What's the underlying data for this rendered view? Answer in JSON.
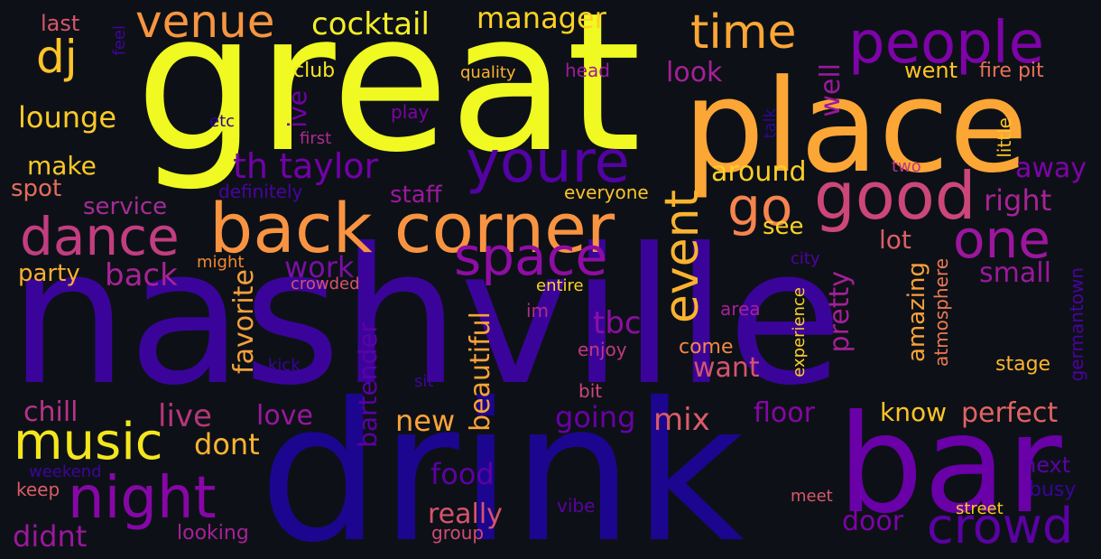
{
  "background": "#0d1117",
  "colormap": "plasma",
  "words": [
    {
      "text": "great",
      "color": "#f0f921"
    },
    {
      "text": "nashville",
      "color": "#3a049a"
    },
    {
      "text": "drink",
      "color": "#1c068f"
    },
    {
      "text": "place",
      "color": "#fca636"
    },
    {
      "text": "bar",
      "color": "#6a00a8"
    },
    {
      "text": "back corner",
      "color": "#f89441"
    },
    {
      "text": "good",
      "color": "#cc4778"
    },
    {
      "text": "people",
      "color": "#7e03a8"
    },
    {
      "text": "youre",
      "color": "#5302a3"
    },
    {
      "text": "dance",
      "color": "#c33d80"
    },
    {
      "text": "space",
      "color": "#8f0da4"
    },
    {
      "text": "night",
      "color": "#8707a6"
    },
    {
      "text": "one",
      "color": "#9c179e"
    },
    {
      "text": "music",
      "color": "#f4e61e"
    },
    {
      "text": "crowd",
      "color": "#5b01a5"
    },
    {
      "text": "th taylor",
      "color": "#7201a8"
    },
    {
      "text": "venue",
      "color": "#f89540"
    },
    {
      "text": "time",
      "color": "#fca636"
    },
    {
      "text": "dj",
      "color": "#fdc328"
    },
    {
      "text": "go",
      "color": "#f7844e"
    },
    {
      "text": "event",
      "color": "#fbb32f"
    },
    {
      "text": "cocktail",
      "color": "#f3ee27"
    },
    {
      "text": "manager",
      "color": "#fdd225"
    },
    {
      "text": "lounge",
      "color": "#fdca26"
    },
    {
      "text": "make",
      "color": "#fdc827"
    },
    {
      "text": "spot",
      "color": "#e66c5c"
    },
    {
      "text": "service",
      "color": "#a52c96"
    },
    {
      "text": "back",
      "color": "#a82296"
    },
    {
      "text": "party",
      "color": "#fdae32"
    },
    {
      "text": "work",
      "color": "#7a0fa6"
    },
    {
      "text": "tbc",
      "color": "#8d0ea5"
    },
    {
      "text": "new",
      "color": "#fca338"
    },
    {
      "text": "beautiful",
      "color": "#fba238"
    },
    {
      "text": "favorite",
      "color": "#f6a23c"
    },
    {
      "text": "bartender",
      "color": "#5c01a6"
    },
    {
      "text": "chill",
      "color": "#b83289"
    },
    {
      "text": "live",
      "color": "#b5367a"
    },
    {
      "text": "love",
      "color": "#9a169f"
    },
    {
      "text": "dont",
      "color": "#fdb42f"
    },
    {
      "text": "going",
      "color": "#6a00a8"
    },
    {
      "text": "mix",
      "color": "#db5c68"
    },
    {
      "text": "food",
      "color": "#5d01a6"
    },
    {
      "text": "really",
      "color": "#d5546e"
    },
    {
      "text": "didnt",
      "color": "#9c179e"
    },
    {
      "text": "looking",
      "color": "#a62198"
    },
    {
      "text": "group",
      "color": "#cf4c74"
    },
    {
      "text": "vibe",
      "color": "#5a02a3"
    },
    {
      "text": "weekend",
      "color": "#3e049c"
    },
    {
      "text": "keep",
      "color": "#db5c68"
    },
    {
      "text": "last",
      "color": "#d6556d"
    },
    {
      "text": "feel",
      "color": "#40049d"
    },
    {
      "text": "club",
      "color": "#f7e425"
    },
    {
      "text": "quality",
      "color": "#fbb32f"
    },
    {
      "text": "head",
      "color": "#a11b9b"
    },
    {
      "text": "play",
      "color": "#7e03a8"
    },
    {
      "text": "etc",
      "color": "#2c0594"
    },
    {
      "text": "first",
      "color": "#b12a90"
    },
    {
      "text": "ive",
      "color": "#7201a8"
    },
    {
      "text": "definitely",
      "color": "#4903a0"
    },
    {
      "text": "staff",
      "color": "#9c179e"
    },
    {
      "text": "everyone",
      "color": "#fdc328"
    },
    {
      "text": "might",
      "color": "#f5882f"
    },
    {
      "text": "crowded",
      "color": "#d45470"
    },
    {
      "text": "entire",
      "color": "#fbd524"
    },
    {
      "text": "im",
      "color": "#b22b8f"
    },
    {
      "text": "enjoy",
      "color": "#bf3984"
    },
    {
      "text": "bit",
      "color": "#cc4778"
    },
    {
      "text": "kick",
      "color": "#3a049a"
    },
    {
      "text": "sit",
      "color": "#41049d"
    },
    {
      "text": "look",
      "color": "#a62098"
    },
    {
      "text": "well",
      "color": "#9b179e"
    },
    {
      "text": "around",
      "color": "#fcce25"
    },
    {
      "text": "see",
      "color": "#fcd225"
    },
    {
      "text": "lot",
      "color": "#dd5e66"
    },
    {
      "text": "want",
      "color": "#d5536f"
    },
    {
      "text": "come",
      "color": "#f48849"
    },
    {
      "text": "area",
      "color": "#a72197"
    },
    {
      "text": "city",
      "color": "#5302a3"
    },
    {
      "text": "pretty",
      "color": "#a51f99"
    },
    {
      "text": "amazing",
      "color": "#fba139"
    },
    {
      "text": "atmosphere",
      "color": "#ed7953"
    },
    {
      "text": "experience",
      "color": "#fdcf26"
    },
    {
      "text": "floor",
      "color": "#8606a6"
    },
    {
      "text": "know",
      "color": "#fdc527"
    },
    {
      "text": "perfect",
      "color": "#e16462"
    },
    {
      "text": "stage",
      "color": "#fdb32f"
    },
    {
      "text": "germantown",
      "color": "#4c02a1"
    },
    {
      "text": "next",
      "color": "#5c01a6"
    },
    {
      "text": "busy",
      "color": "#3a049a"
    },
    {
      "text": "street",
      "color": "#fdc527"
    },
    {
      "text": "meet",
      "color": "#d8576b"
    },
    {
      "text": "door",
      "color": "#7e03a8"
    },
    {
      "text": "small",
      "color": "#9c179e"
    },
    {
      "text": "right",
      "color": "#a82296"
    },
    {
      "text": "away",
      "color": "#7e03a8"
    },
    {
      "text": "little",
      "color": "#fdc328"
    },
    {
      "text": "two",
      "color": "#bd3786"
    },
    {
      "text": "talk",
      "color": "#2f0596"
    },
    {
      "text": "went",
      "color": "#fdc527"
    },
    {
      "text": "fire pit",
      "color": "#e97158"
    }
  ]
}
